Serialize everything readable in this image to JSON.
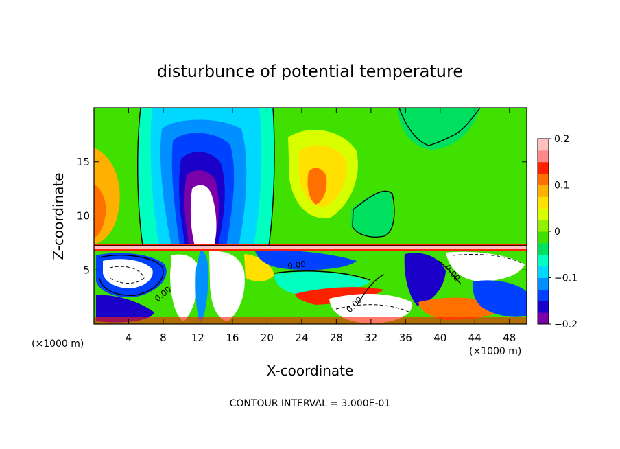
{
  "chart_data": {
    "type": "heatmap",
    "title": "disturbunce of potential temperature",
    "xlabel": "X-coordinate",
    "ylabel": "Z-coordinate",
    "x_unit": "(×1000 m)",
    "z_unit": "(×1000 m)",
    "xlim": [
      0,
      50
    ],
    "ylim": [
      0,
      20
    ],
    "xticks": [
      "4",
      "8",
      "12",
      "16",
      "20",
      "24",
      "28",
      "32",
      "36",
      "40",
      "44",
      "48"
    ],
    "yticks": [
      "5",
      "10",
      "15"
    ],
    "colorbar": {
      "range": [
        -0.2,
        0.2
      ],
      "tick_labels": [
        "0.2",
        "0.1",
        "0",
        "−0.1",
        "−0.2"
      ],
      "colors": [
        "#7a00a8",
        "#1a00c8",
        "#0040ff",
        "#0090ff",
        "#00d8ff",
        "#00ffc0",
        "#00e060",
        "#40e000",
        "#90f000",
        "#d8ff00",
        "#ffe000",
        "#ffb000",
        "#ff7000",
        "#ff2000",
        "#ff8888",
        "#ffc0c0"
      ]
    },
    "contour_labels": [
      "0.00",
      "0.00",
      "0.00",
      "0.00"
    ],
    "footnote": "CONTOUR INTERVAL = 3.000E-01"
  }
}
